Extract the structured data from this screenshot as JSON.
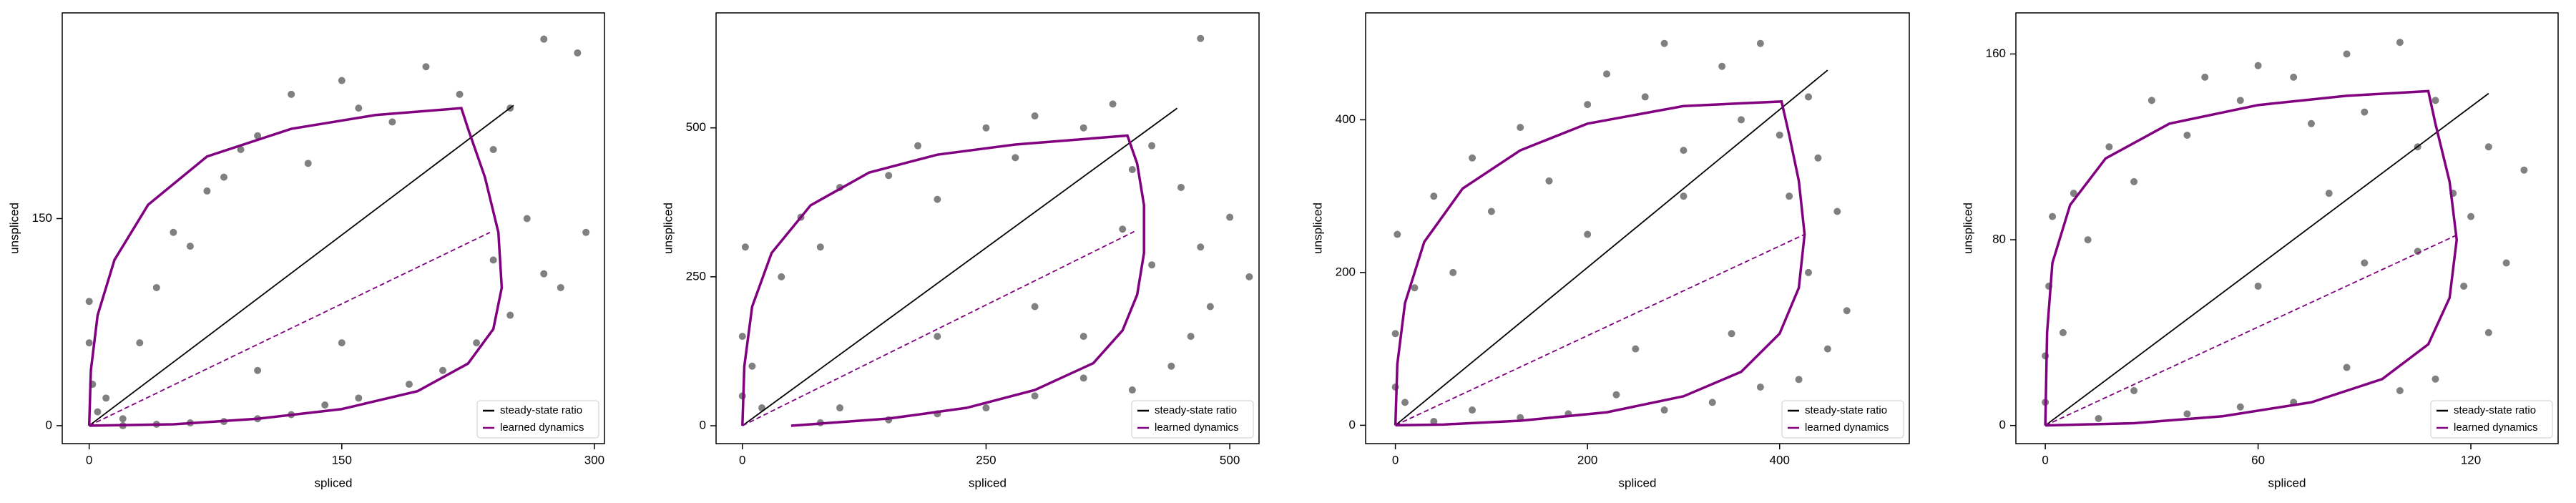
{
  "chart_data": [
    {
      "type": "scatter",
      "xlabel": "spliced",
      "ylabel": "unspliced",
      "xlim": [
        -16,
        306
      ],
      "ylim": [
        -13,
        299
      ],
      "xticks": [
        0,
        150,
        300
      ],
      "yticks": [
        0,
        150
      ],
      "legend": "lower right",
      "points": {
        "color": "#808080",
        "x": [
          0,
          0,
          2,
          5,
          10,
          20,
          30,
          40,
          50,
          60,
          70,
          80,
          90,
          100,
          120,
          130,
          150,
          160,
          180,
          200,
          220,
          240,
          250,
          260,
          270,
          280,
          290,
          295,
          250,
          230,
          210,
          190,
          160,
          140,
          120,
          100,
          80,
          60,
          40,
          20,
          150,
          100,
          240,
          270
        ],
        "y": [
          60,
          90,
          30,
          10,
          20,
          5,
          60,
          100,
          140,
          130,
          170,
          180,
          200,
          210,
          240,
          190,
          250,
          230,
          220,
          260,
          240,
          200,
          230,
          150,
          110,
          100,
          270,
          140,
          80,
          60,
          40,
          30,
          20,
          15,
          8,
          5,
          3,
          2,
          1,
          0,
          60,
          40,
          120,
          280
        ]
      },
      "series": [
        {
          "name": "steady-state ratio",
          "color": "#000000",
          "x": [
            0,
            252
          ],
          "y": [
            0,
            232
          ]
        },
        {
          "name": "learned dynamics",
          "color": "#800080",
          "x": [
            0,
            1,
            5,
            15,
            35,
            70,
            120,
            170,
            221,
            225,
            235,
            243,
            245,
            240,
            225,
            195,
            150,
            100,
            50,
            0
          ],
          "y": [
            0,
            40,
            80,
            120,
            160,
            195,
            215,
            225,
            230,
            215,
            180,
            140,
            100,
            70,
            45,
            25,
            12,
            5,
            1,
            0
          ]
        }
      ],
      "fit_line": {
        "color": "#800080",
        "x": [
          0,
          238
        ],
        "y": [
          0,
          140
        ]
      }
    },
    {
      "type": "scatter",
      "xlabel": "spliced",
      "ylabel": "unspliced",
      "xlim": [
        -27,
        530
      ],
      "ylim": [
        -30,
        693
      ],
      "xticks": [
        0,
        250,
        500
      ],
      "yticks": [
        0,
        250,
        500
      ],
      "legend": "lower right",
      "points": {
        "color": "#808080",
        "x": [
          0,
          0,
          3,
          10,
          20,
          40,
          60,
          80,
          100,
          150,
          180,
          200,
          250,
          280,
          300,
          350,
          380,
          400,
          420,
          450,
          470,
          480,
          500,
          520,
          460,
          440,
          400,
          350,
          300,
          250,
          200,
          150,
          100,
          80,
          200,
          300,
          420,
          470,
          390,
          350
        ],
        "y": [
          50,
          150,
          300,
          100,
          30,
          250,
          350,
          300,
          400,
          420,
          470,
          380,
          500,
          450,
          520,
          500,
          540,
          430,
          470,
          400,
          300,
          200,
          350,
          250,
          150,
          100,
          60,
          80,
          50,
          30,
          20,
          10,
          30,
          5,
          150,
          200,
          270,
          650,
          330,
          150
        ]
      },
      "series": [
        {
          "name": "steady-state ratio",
          "color": "#000000",
          "x": [
            0,
            446
          ],
          "y": [
            0,
            533
          ]
        },
        {
          "name": "learned dynamics",
          "color": "#800080",
          "x": [
            0,
            2,
            10,
            30,
            70,
            130,
            200,
            280,
            395,
            405,
            412,
            412,
            405,
            390,
            360,
            300,
            230,
            150,
            50
          ],
          "y": [
            0,
            100,
            200,
            290,
            370,
            425,
            455,
            472,
            487,
            440,
            370,
            290,
            220,
            160,
            105,
            60,
            30,
            12,
            0
          ]
        }
      ],
      "fit_line": {
        "color": "#800080",
        "x": [
          0,
          402
        ],
        "y": [
          0,
          326
        ]
      }
    },
    {
      "type": "scatter",
      "xlabel": "spliced",
      "ylabel": "unspliced",
      "xlim": [
        -31,
        535
      ],
      "ylim": [
        -24,
        540
      ],
      "xticks": [
        0,
        200,
        400
      ],
      "yticks": [
        0,
        200,
        400
      ],
      "legend": "lower right",
      "points": {
        "color": "#808080",
        "x": [
          0,
          0,
          2,
          10,
          20,
          40,
          60,
          80,
          100,
          130,
          160,
          200,
          220,
          260,
          280,
          300,
          340,
          360,
          380,
          400,
          410,
          430,
          440,
          460,
          470,
          450,
          420,
          380,
          330,
          280,
          230,
          180,
          130,
          80,
          40,
          250,
          350,
          430,
          300,
          200
        ],
        "y": [
          50,
          120,
          250,
          30,
          180,
          300,
          200,
          350,
          280,
          390,
          320,
          420,
          460,
          430,
          500,
          360,
          470,
          400,
          500,
          380,
          300,
          200,
          350,
          280,
          150,
          100,
          60,
          50,
          30,
          20,
          40,
          15,
          10,
          20,
          5,
          100,
          120,
          430,
          300,
          250
        ]
      },
      "series": [
        {
          "name": "steady-state ratio",
          "color": "#000000",
          "x": [
            0,
            450
          ],
          "y": [
            0,
            465
          ]
        },
        {
          "name": "learned dynamics",
          "color": "#800080",
          "x": [
            0,
            2,
            10,
            30,
            70,
            130,
            200,
            300,
            402,
            410,
            420,
            426,
            420,
            400,
            360,
            300,
            220,
            130,
            50,
            0
          ],
          "y": [
            0,
            80,
            160,
            240,
            310,
            360,
            395,
            418,
            424,
            380,
            320,
            250,
            180,
            120,
            70,
            38,
            17,
            6,
            1,
            0
          ]
        }
      ],
      "fit_line": {
        "color": "#800080",
        "x": [
          0,
          426
        ],
        "y": [
          0,
          250
        ]
      }
    },
    {
      "type": "scatter",
      "xlabel": "spliced",
      "ylabel": "unspliced",
      "xlim": [
        -8.3,
        144.6
      ],
      "ylim": [
        -7.8,
        177.7
      ],
      "xticks": [
        0,
        60,
        120
      ],
      "yticks": [
        0,
        80,
        160
      ],
      "legend": "lower right",
      "points": {
        "color": "#808080",
        "x": [
          0,
          0,
          1,
          2,
          5,
          8,
          12,
          18,
          25,
          30,
          40,
          45,
          55,
          60,
          70,
          75,
          85,
          90,
          100,
          105,
          110,
          115,
          118,
          120,
          125,
          130,
          135,
          125,
          110,
          100,
          85,
          70,
          55,
          40,
          25,
          15,
          60,
          90,
          105,
          80
        ],
        "y": [
          10,
          30,
          60,
          90,
          40,
          100,
          80,
          120,
          105,
          140,
          125,
          150,
          140,
          155,
          150,
          130,
          160,
          135,
          165,
          120,
          140,
          100,
          60,
          90,
          120,
          70,
          110,
          40,
          20,
          15,
          25,
          10,
          8,
          5,
          15,
          3,
          60,
          70,
          75,
          100
        ]
      },
      "series": [
        {
          "name": "steady-state ratio",
          "color": "#000000",
          "x": [
            0,
            125
          ],
          "y": [
            0,
            143
          ]
        },
        {
          "name": "learned dynamics",
          "color": "#800080",
          "x": [
            0,
            0.5,
            2,
            7,
            17,
            35,
            60,
            85,
            108,
            110,
            114,
            116,
            114,
            108,
            95,
            75,
            50,
            25,
            0
          ],
          "y": [
            0,
            40,
            70,
            95,
            115,
            130,
            138,
            142,
            144,
            130,
            105,
            80,
            55,
            35,
            20,
            10,
            4,
            1,
            0
          ]
        }
      ],
      "fit_line": {
        "color": "#800080",
        "x": [
          0,
          116
        ],
        "y": [
          0,
          82
        ]
      }
    }
  ]
}
